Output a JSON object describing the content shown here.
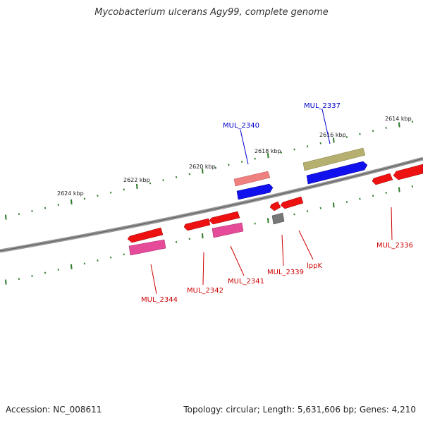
{
  "title": "Mycobacterium ulcerans Agy99, complete genome",
  "footer": {
    "accession": "Accession: NC_008611",
    "stats": "Topology: circular; Length: 5,631,606 bp; Genes: 4,210"
  },
  "scale_labels": [
    "2624 kbp",
    "2622 kbp",
    "2620 kbp",
    "2618 kbp",
    "2616 kbp",
    "2614 kbp"
  ],
  "gene_labels": [
    {
      "text": "MUL_2340",
      "color": "#0000cc"
    },
    {
      "text": "MUL_2337",
      "color": "#0000cc"
    },
    {
      "text": "MUL_2336",
      "color": "#cc0000"
    },
    {
      "text": "MUL_2344",
      "color": "#cc0000"
    },
    {
      "text": "MUL_2342",
      "color": "#cc0000"
    },
    {
      "text": "MUL_2341",
      "color": "#cc0000"
    },
    {
      "text": "MUL_2339",
      "color": "#cc0000"
    },
    {
      "text": "lppK",
      "color": "#cc0000"
    }
  ],
  "colors": {
    "backbone": "#888888",
    "tick": "#2a7a2a",
    "red": "#ee1111",
    "pink": "#e64b9a",
    "salmon": "#ee8080",
    "blue": "#1111ee",
    "olive": "#b5b070",
    "gray": "#777777"
  }
}
